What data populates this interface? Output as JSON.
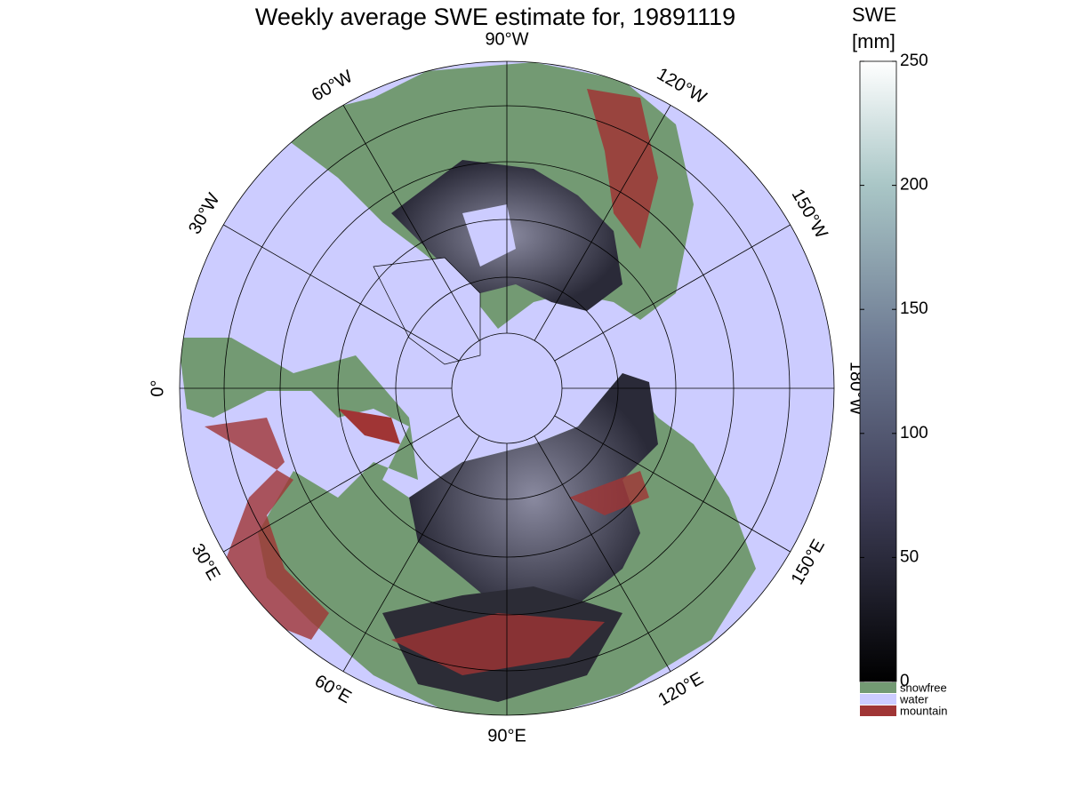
{
  "title": "Weekly average SWE estimate for, 19891119",
  "longitude_labels": [
    "0°",
    "30°E",
    "60°E",
    "90°E",
    "120°E",
    "150°E",
    "180°W",
    "150°W",
    "120°W",
    "90°W",
    "60°W",
    "30°W"
  ],
  "colorbar": {
    "label": [
      "SWE",
      "[mm]"
    ],
    "lim": [
      0,
      250
    ],
    "ticks": [
      0,
      50,
      100,
      150,
      200,
      250
    ]
  },
  "legend": [
    {
      "name": "snowfree",
      "color": "#739a73"
    },
    {
      "name": "water",
      "color": "#ccccff"
    },
    {
      "name": "mountain",
      "color": "#a03535"
    }
  ]
}
